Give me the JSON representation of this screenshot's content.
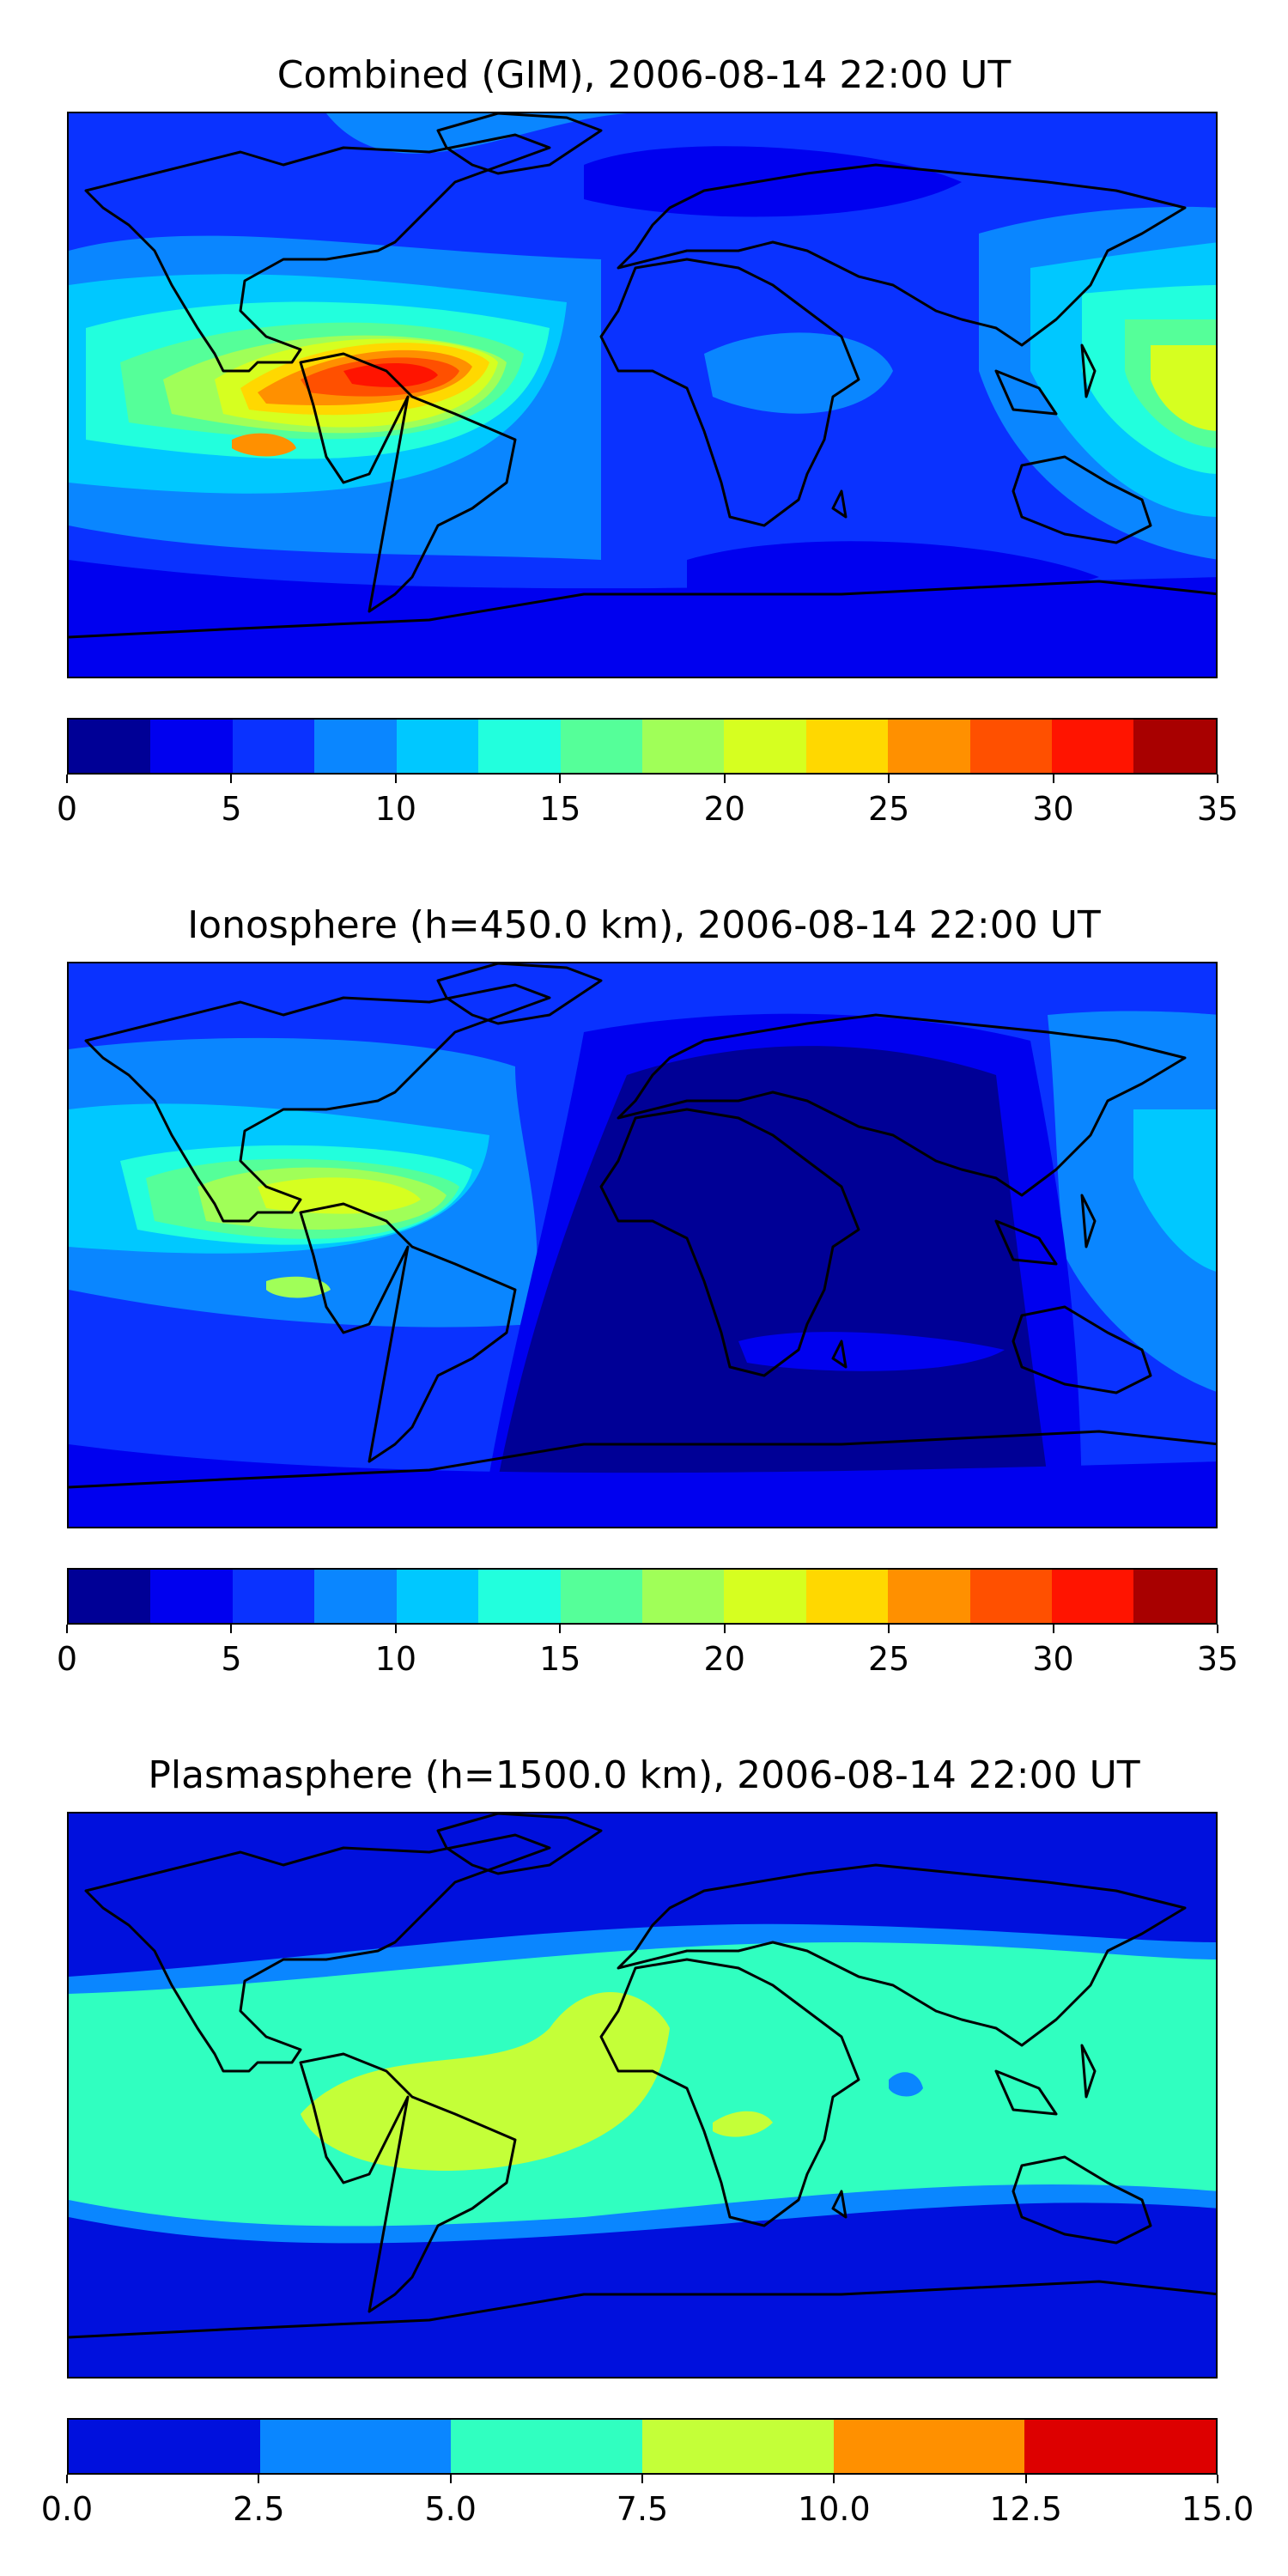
{
  "panels": [
    {
      "title": "Combined (GIM), 2006-08-14 22:00 UT",
      "colorbar": {
        "colors": [
          "#000096",
          "#0000ef",
          "#0a32ff",
          "#0a86ff",
          "#00c8ff",
          "#22ffdd",
          "#55ff99",
          "#a0ff58",
          "#d6ff20",
          "#ffd800",
          "#ff9000",
          "#ff5000",
          "#ff1400",
          "#a80000"
        ],
        "ticks": [
          "0",
          "5",
          "10",
          "15",
          "20",
          "25",
          "30",
          "35"
        ]
      },
      "chart_data": {
        "type": "heatmap",
        "title": "Combined (GIM), 2006-08-14 22:00 UT",
        "levels": [
          0,
          2.5,
          5,
          7.5,
          10,
          12.5,
          15,
          17.5,
          20,
          22.5,
          25,
          27.5,
          30,
          32.5,
          35
        ],
        "range": [
          0,
          35
        ],
        "background_level": "5-7.5",
        "features": [
          {
            "region": "Caribbean / northern South America",
            "max_band": "27.5-30"
          },
          {
            "region": "Eastern Pacific",
            "band": "20-25"
          },
          {
            "region": "Western Pacific",
            "band": "15-20"
          },
          {
            "region": "Africa / Indian Ocean",
            "band": "7.5-10"
          },
          {
            "region": "Southern Ocean / Antarctica",
            "band": "2.5-5"
          }
        ]
      }
    },
    {
      "title": "Ionosphere  (h=450.0 km), 2006-08-14 22:00 UT",
      "colorbar": {
        "colors": [
          "#000096",
          "#0000ef",
          "#0a32ff",
          "#0a86ff",
          "#00c8ff",
          "#22ffdd",
          "#55ff99",
          "#a0ff58",
          "#d6ff20",
          "#ffd800",
          "#ff9000",
          "#ff5000",
          "#ff1400",
          "#a80000"
        ],
        "ticks": [
          "0",
          "5",
          "10",
          "15",
          "20",
          "25",
          "30",
          "35"
        ]
      },
      "chart_data": {
        "type": "heatmap",
        "title": "Ionosphere  (h=450.0 km), 2006-08-14 22:00 UT",
        "levels": [
          0,
          2.5,
          5,
          7.5,
          10,
          12.5,
          15,
          17.5,
          20,
          22.5,
          25,
          27.5,
          30,
          32.5,
          35
        ],
        "range": [
          0,
          35
        ],
        "background_level": "2.5-5",
        "features": [
          {
            "region": "Caribbean / Eastern Pacific",
            "max_band": "20-22.5"
          },
          {
            "region": "Western Pacific",
            "band": "10-12.5"
          },
          {
            "region": "Africa / Indian Ocean / Atlantic",
            "band": "0-2.5"
          }
        ]
      }
    },
    {
      "title": "Plasmasphere (h=1500.0 km), 2006-08-14 22:00 UT",
      "colorbar": {
        "colors": [
          "#0010dd",
          "#0a86ff",
          "#30ffc0",
          "#c4ff38",
          "#ff9000",
          "#dd0000"
        ],
        "ticks": [
          "0.0",
          "2.5",
          "5.0",
          "7.5",
          "10.0",
          "12.5",
          "15.0"
        ]
      },
      "chart_data": {
        "type": "heatmap",
        "title": "Plasmasphere (h=1500.0 km), 2006-08-14 22:00 UT",
        "levels": [
          0,
          2.5,
          5,
          7.5,
          10,
          12.5,
          15
        ],
        "range": [
          0,
          15
        ],
        "background_level": "0-2.5",
        "features": [
          {
            "region": "Equatorial belt",
            "band": "5-7.5"
          },
          {
            "region": "South America / Atlantic / West Africa",
            "band": "7.5-10"
          },
          {
            "region": "Bay of Bengal",
            "band": "2.5-5"
          }
        ]
      }
    }
  ]
}
